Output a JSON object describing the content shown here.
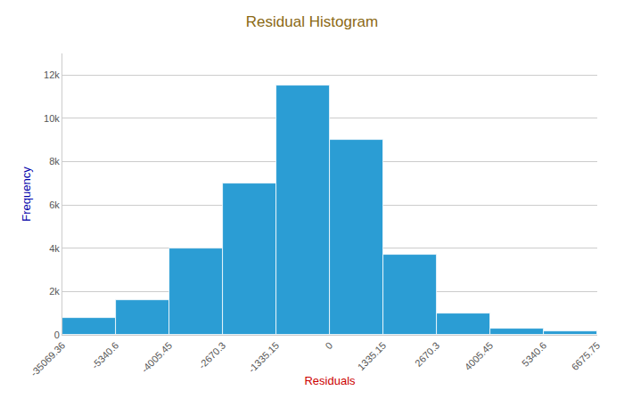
{
  "chart_data": {
    "type": "histogram",
    "title": "Residual Histogram",
    "xlabel": "Residuals",
    "ylabel": "Frequency",
    "bins": [
      "-35069.36",
      "-5340.6",
      "-4005.45",
      "-2670.3",
      "-1335.15",
      "0",
      "1335.15",
      "2670.3",
      "4005.45",
      "5340.6",
      "6675.75"
    ],
    "values": [
      800,
      1600,
      4000,
      7000,
      11500,
      9000,
      3700,
      1000,
      300,
      150
    ],
    "color": "#2B9DD4",
    "ylim": [
      0,
      13000
    ],
    "yticks": [
      0,
      {
        "value": 2000,
        "label": "2k"
      },
      {
        "value": 4000,
        "label": "4k"
      },
      {
        "value": 6000,
        "label": "6k"
      },
      {
        "value": 8000,
        "label": "8k"
      },
      {
        "value": 10000,
        "label": "10k"
      },
      {
        "value": 12000,
        "label": "12k"
      }
    ],
    "grid": true
  }
}
